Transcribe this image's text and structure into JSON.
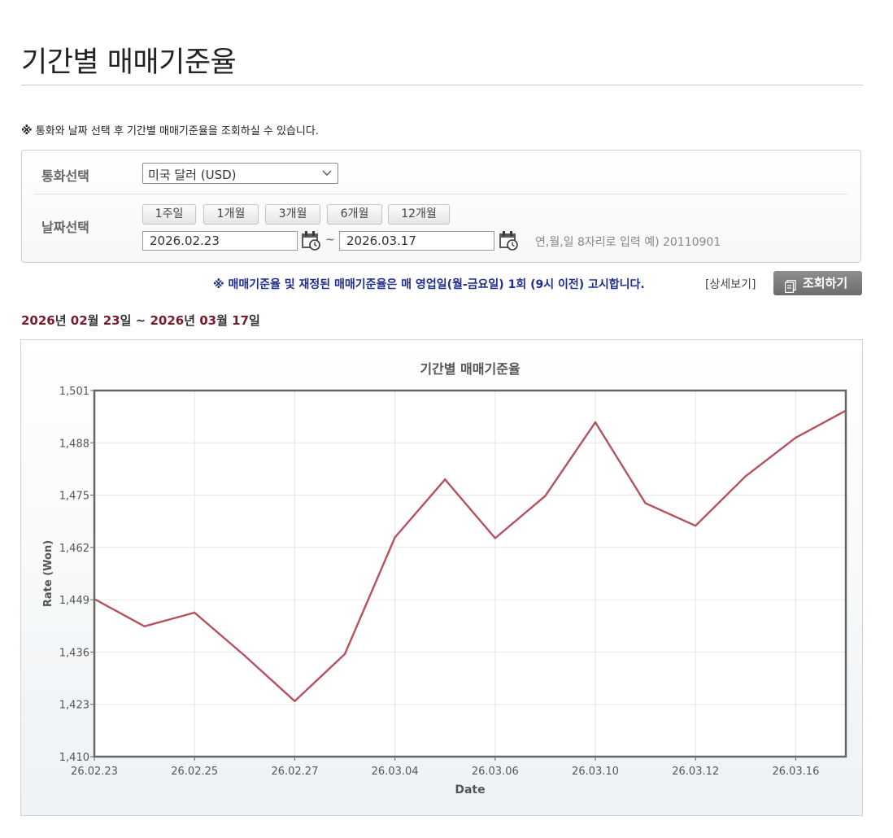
{
  "page": {
    "title": "기간별 매매기준율",
    "notice_mark": "※",
    "notice_text": "통화와 날짜 선택 후 기간별 매매기준율을 조회하실 수 있습니다."
  },
  "filters": {
    "currency_label": "통화선택",
    "currency_value": "미국 달러 (USD)",
    "date_label": "날짜선택",
    "period_buttons": [
      "1주일",
      "1개월",
      "3개월",
      "6개월",
      "12개월"
    ],
    "start_date": "2026.02.23",
    "end_date": "2026.03.17",
    "range_separator": "~",
    "input_hint": "연,월,일 8자리로 입력 예) 20110901"
  },
  "notice2": "※ 매매기준율 및 재정된 매매기준율은 매 영업일(월-금요일) 1회 (9시 이전) 고시합니다.",
  "detail_link": "[상세보기]",
  "query_button": "조회하기",
  "range_display": {
    "start_year": "2026",
    "start_month": "02",
    "start_day": "23",
    "end_year": "2026",
    "end_month": "03",
    "end_day": "17",
    "year_unit": "년",
    "month_unit": "월",
    "day_unit": "일",
    "separator": "~"
  },
  "colors": {
    "line": "#b5525e",
    "accent_date": "#7a1b2c",
    "notice_blue": "#1f2e8e"
  },
  "chart_data": {
    "type": "line",
    "title": "기간별 매매기준율",
    "xlabel": "Date",
    "ylabel": "Rate (Won)",
    "x": [
      "26.02.23",
      "26.02.24",
      "26.02.25",
      "26.02.26",
      "26.02.27",
      "26.03.03",
      "26.03.04",
      "26.03.05",
      "26.03.06",
      "26.03.09",
      "26.03.10",
      "26.03.11",
      "26.03.12",
      "26.03.13",
      "26.03.16",
      "26.03.17"
    ],
    "x_tick_labels": [
      "26.02.23",
      "26.02.25",
      "26.02.27",
      "26.03.04",
      "26.03.06",
      "26.03.10",
      "26.03.12",
      "26.03.16"
    ],
    "y_tick_labels": [
      "1,410",
      "1,423",
      "1,436",
      "1,449",
      "1,462",
      "1,475",
      "1,488",
      "1,501"
    ],
    "series": [
      {
        "values": [
          1449.2,
          1442.4,
          1445.8,
          1435.1,
          1423.8,
          1435.5,
          1464.5,
          1478.9,
          1464.3,
          1474.8,
          1493.1,
          1473.0,
          1467.4,
          1479.7,
          1489.3,
          1496.0
        ]
      }
    ],
    "ylim": [
      1410,
      1501
    ],
    "grid": true,
    "legend": "none"
  }
}
